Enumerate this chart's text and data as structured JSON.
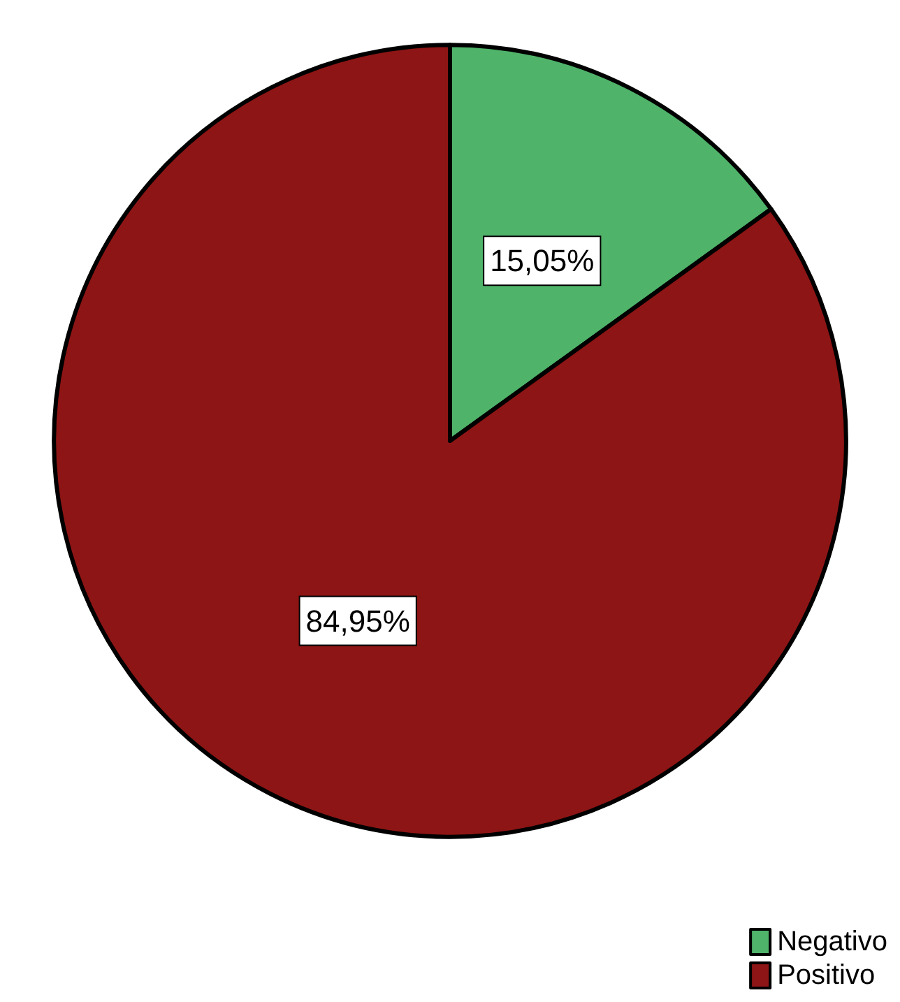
{
  "chart_data": {
    "type": "pie",
    "categories": [
      "Negativo",
      "Positivo"
    ],
    "values": [
      15.05,
      84.95
    ],
    "value_labels": [
      "15,05%",
      "84,95%"
    ],
    "colors": [
      "#4fb36a",
      "#8e1515"
    ],
    "legend": "bottom right"
  }
}
